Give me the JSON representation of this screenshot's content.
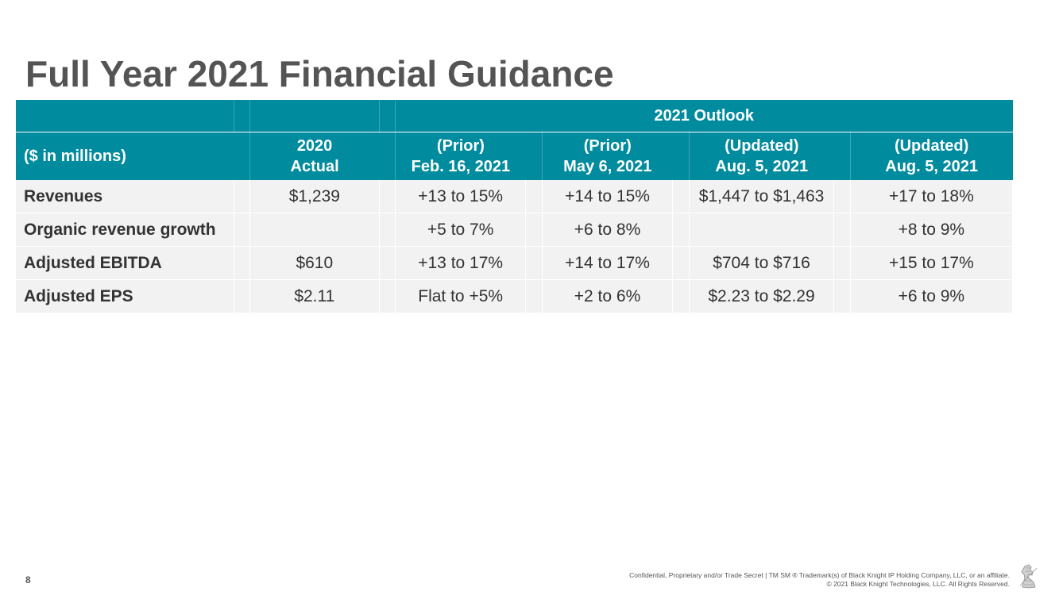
{
  "title": "Full Year 2021 Financial Guidance",
  "table": {
    "outlook_label": "2021 Outlook",
    "unit_label": "($ in millions)",
    "columns": [
      {
        "line1": "2020",
        "line2": "Actual"
      },
      {
        "line1": "(Prior)",
        "line2": "Feb. 16, 2021"
      },
      {
        "line1": "(Prior)",
        "line2": "May 6, 2021"
      },
      {
        "line1": "(Updated)",
        "line2": "Aug. 5, 2021"
      },
      {
        "line1": "(Updated)",
        "line2": "Aug. 5, 2021"
      }
    ],
    "rows": [
      {
        "label": "Revenues",
        "values": [
          "$1,239",
          "+13 to 15%",
          "+14 to 15%",
          "$1,447 to $1,463",
          "+17 to 18%"
        ]
      },
      {
        "label": "Organic revenue growth",
        "values": [
          "",
          "+5 to 7%",
          "+6 to 8%",
          "",
          "+8 to 9%"
        ]
      },
      {
        "label": "Adjusted EBITDA",
        "values": [
          "$610",
          "+13 to 17%",
          "+14 to 17%",
          "$704 to $716",
          "+15 to 17%"
        ]
      },
      {
        "label": "Adjusted EPS",
        "values": [
          "$2.11",
          "Flat to +5%",
          "+2 to 6%",
          "$2.23 to $2.29",
          "+6 to 9%"
        ]
      }
    ]
  },
  "footer": {
    "page_number": "8",
    "confidential_line1": "Confidential, Proprietary and/or Trade Secret | TM SM ® Trademark(s) of Black Knight IP Holding Company, LLC, or an affiliate.",
    "confidential_line2": "© 2021 Black Knight Technologies, LLC.  All Rights Reserved.",
    "logo_icon": "black-knight-logo-icon"
  },
  "colors": {
    "header_teal": "#008b9e",
    "row_gray": "#f2f2f2",
    "title_gray": "#545454"
  }
}
